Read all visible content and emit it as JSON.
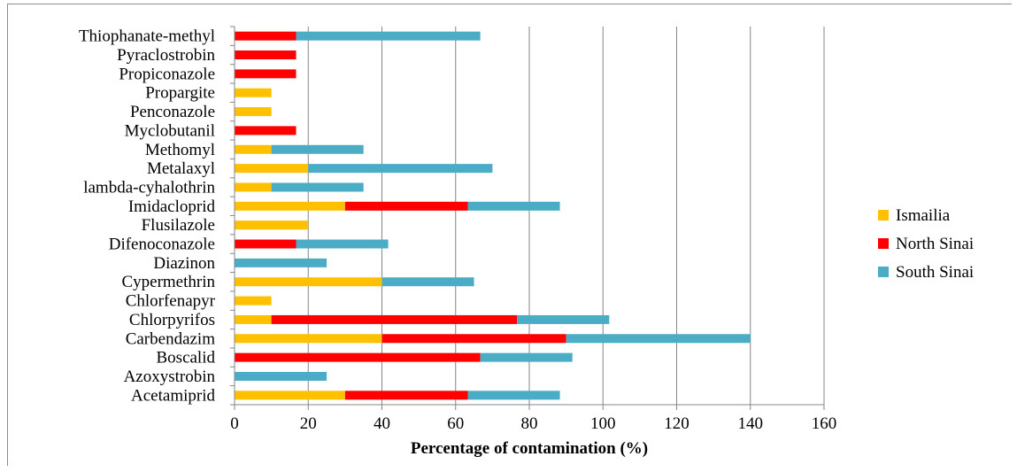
{
  "chart_data": {
    "type": "bar",
    "orientation": "horizontal",
    "stacked": true,
    "categories": [
      "Thiophanate-methyl",
      "Pyraclostrobin",
      "Propiconazole",
      "Propargite",
      "Penconazole",
      "Myclobutanil",
      "Methomyl",
      "Metalaxyl",
      "lambda-cyhalothrin",
      "Imidacloprid",
      "Flusilazole",
      "Difenoconazole",
      "Diazinon",
      "Cypermethrin",
      "Chlorfenapyr",
      "Chlorpyrifos",
      "Carbendazim",
      "Boscalid",
      "Azoxystrobin",
      "Acetamiprid"
    ],
    "series": [
      {
        "name": "Ismailia",
        "color": "#FFC000",
        "values": [
          0,
          0,
          0,
          10,
          10,
          0,
          10,
          20,
          10,
          30,
          20,
          0,
          0,
          40,
          10,
          10,
          40,
          0,
          0,
          30
        ]
      },
      {
        "name": "North Sinai",
        "color": "#FF0000",
        "values": [
          16.7,
          16.7,
          16.7,
          0,
          0,
          16.7,
          0,
          0,
          0,
          33.3,
          0,
          16.7,
          0,
          0,
          0,
          66.7,
          50,
          66.7,
          0,
          33.3
        ]
      },
      {
        "name": "South Sinai",
        "color": "#4BACC6",
        "values": [
          50,
          0,
          0,
          0,
          0,
          0,
          25,
          50,
          25,
          25,
          0,
          25,
          25,
          25,
          0,
          25,
          50,
          25,
          25,
          25
        ]
      }
    ],
    "xlabel": "Percentage of contamination (%)",
    "xlim": [
      0,
      160
    ],
    "xticks": [
      0,
      20,
      40,
      60,
      80,
      100,
      120,
      140,
      160
    ],
    "grid": true,
    "legend_position": "right"
  }
}
